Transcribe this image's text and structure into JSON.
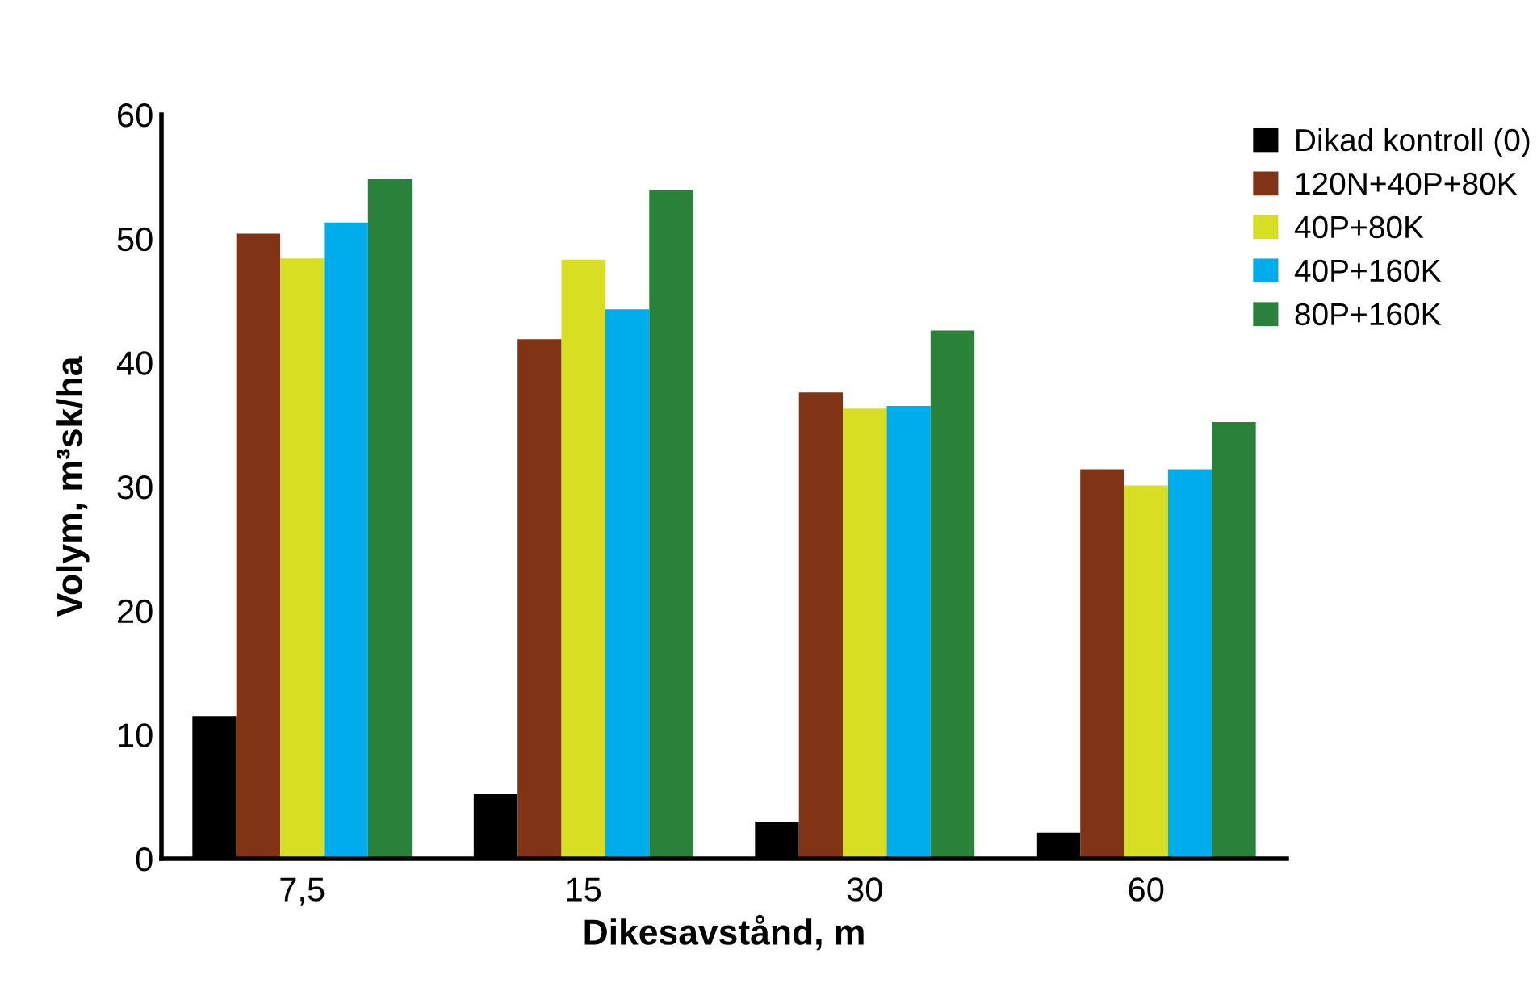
{
  "chart_data": {
    "type": "bar",
    "xlabel": "Dikesavstånd, m",
    "ylabel": "Volym, m³sk/ha",
    "categories": [
      "7,5",
      "15",
      "30",
      "60"
    ],
    "series": [
      {
        "name": "Dikad kontroll (0)",
        "color": "#000000",
        "values": [
          11.5,
          5.2,
          3.0,
          2.1
        ]
      },
      {
        "name": "120N+40P+80K",
        "color": "#803415",
        "values": [
          50.4,
          41.9,
          37.6,
          31.4
        ]
      },
      {
        "name": "40P+80K",
        "color": "#d8df22",
        "values": [
          48.4,
          48.3,
          36.3,
          30.1
        ]
      },
      {
        "name": "40P+160K",
        "color": "#00adec",
        "values": [
          51.3,
          44.3,
          36.5,
          31.4
        ]
      },
      {
        "name": "80P+160K",
        "color": "#2a8139",
        "values": [
          54.8,
          53.9,
          42.6,
          35.2
        ]
      }
    ],
    "ylim": [
      0,
      60
    ],
    "yticks": [
      0,
      10,
      20,
      30,
      40,
      50,
      60
    ],
    "grid": false,
    "legend": "top right"
  }
}
